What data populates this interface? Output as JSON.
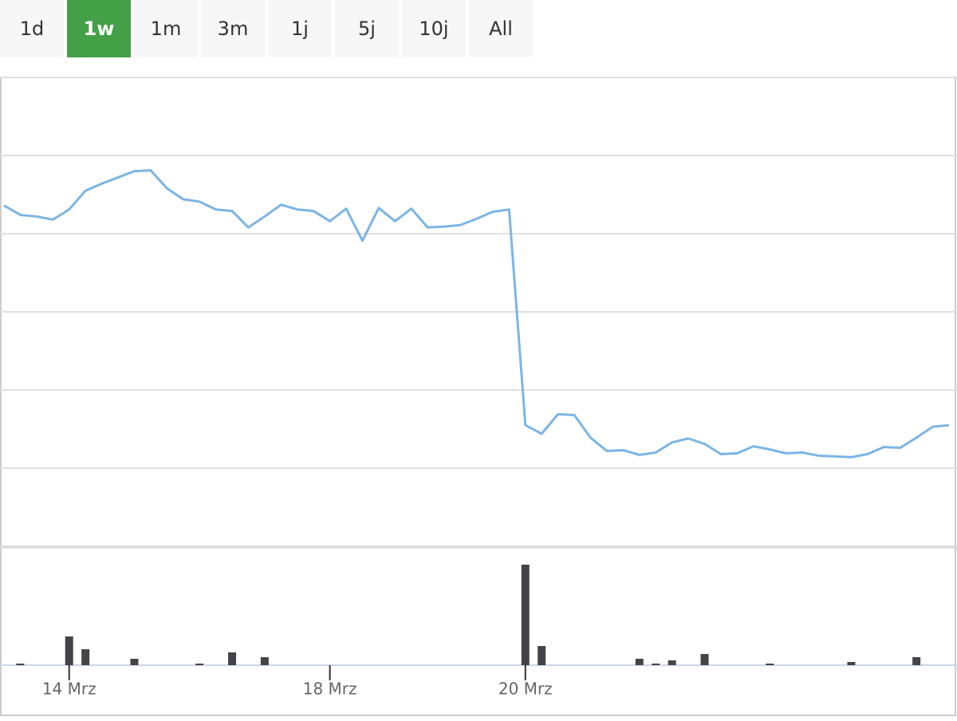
{
  "range_buttons": {
    "labels": [
      "1d",
      "1w",
      "1m",
      "3m",
      "1j",
      "5j",
      "10j",
      "All"
    ],
    "selected": 1,
    "color": "#43a047"
  },
  "chart_data": {
    "type": "line",
    "categories": [
      null,
      null,
      null,
      null,
      "14 Mrz",
      null,
      null,
      null,
      null,
      null,
      null,
      null,
      null,
      null,
      null,
      null,
      null,
      null,
      null,
      null,
      "18 Mrz",
      null,
      null,
      null,
      null,
      null,
      null,
      null,
      null,
      null,
      null,
      null,
      "20 Mrz",
      null,
      null,
      null,
      null,
      null,
      null,
      null,
      null,
      null,
      null,
      null,
      null,
      null,
      null,
      null,
      null,
      null,
      null,
      null,
      null,
      null,
      null,
      null,
      null,
      null,
      null
    ],
    "series": [
      {
        "type": "line",
        "color": "#7cb5e4",
        "values": [
          436,
          424,
          422,
          418,
          431,
          455,
          464,
          472,
          480,
          481,
          458,
          444,
          441,
          431,
          429,
          408,
          422,
          437,
          431,
          429,
          416,
          432,
          391,
          433,
          416,
          432,
          408,
          409,
          411,
          419,
          428,
          431,
          155,
          144,
          169,
          168,
          139,
          122,
          123,
          117,
          120,
          133,
          138,
          131,
          118,
          119,
          128,
          124,
          119,
          120,
          116,
          115,
          114,
          118,
          127,
          126,
          139,
          153,
          155
        ]
      },
      {
        "type": "bar",
        "axis": "y2",
        "color": "#434348",
        "values": [
          0,
          2,
          0,
          0,
          36,
          20,
          0,
          0,
          8,
          0,
          0,
          0,
          2,
          0,
          16,
          0,
          10,
          0,
          0,
          0,
          0,
          0,
          0,
          0,
          0,
          0,
          0,
          0,
          0,
          0,
          0,
          0,
          126,
          24,
          0,
          0,
          0,
          0,
          0,
          8,
          2,
          6,
          0,
          14,
          0,
          0,
          0,
          2,
          0,
          0,
          0,
          0,
          4,
          0,
          0,
          0,
          10,
          0,
          0
        ]
      }
    ],
    "ylim": [
      0,
      600
    ],
    "yticks": [
      0,
      100,
      200,
      300,
      400,
      500,
      600
    ],
    "grid": true,
    "y2lim": [
      0,
      147
    ]
  }
}
